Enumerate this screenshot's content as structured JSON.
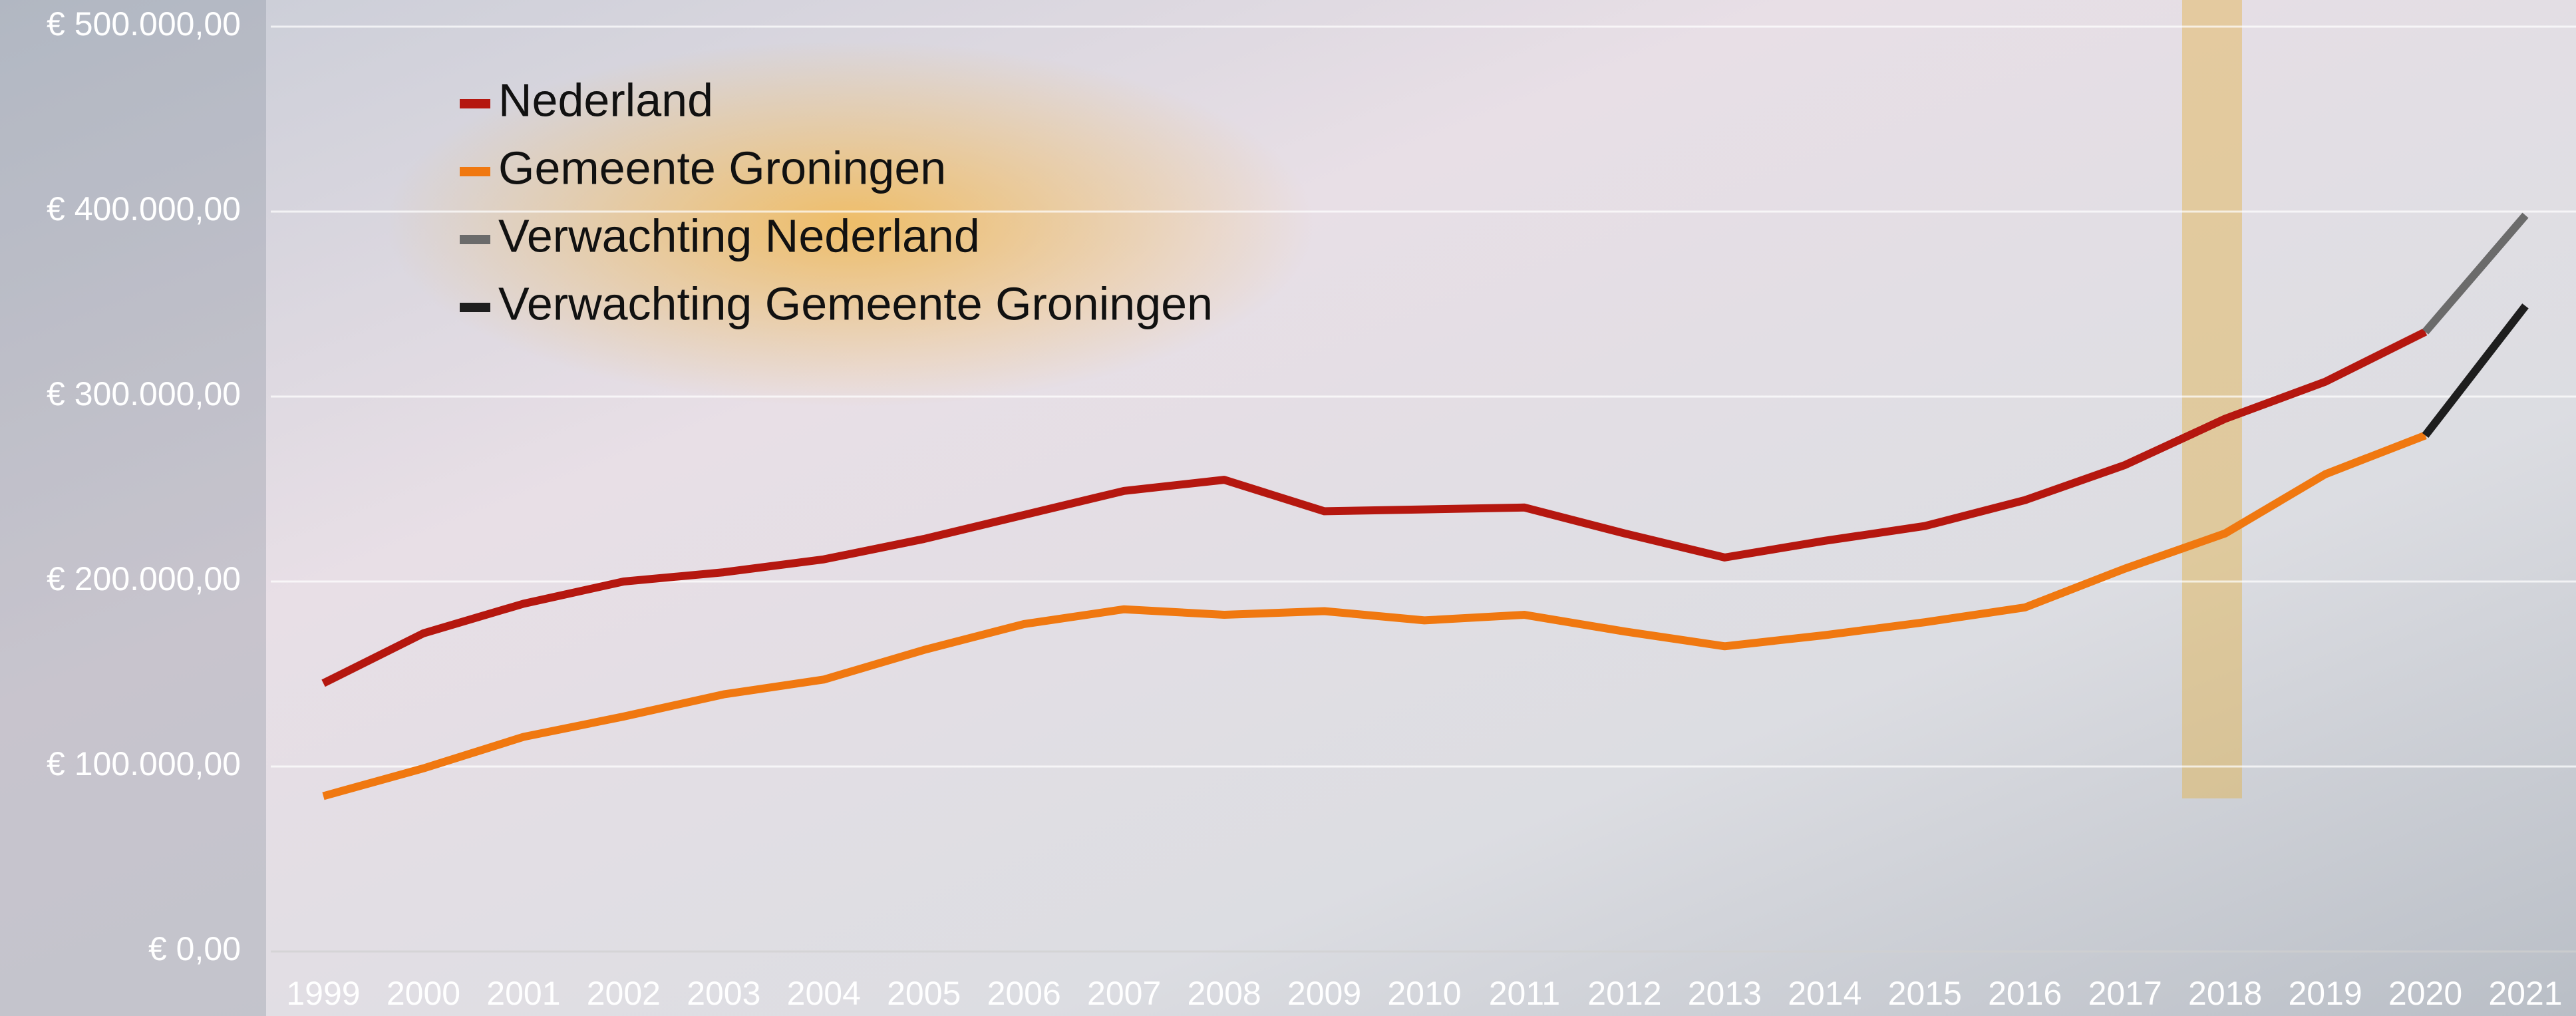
{
  "chart_data": {
    "type": "line",
    "categories": [
      "1999",
      "2000",
      "2001",
      "2002",
      "2003",
      "2004",
      "2005",
      "2006",
      "2007",
      "2008",
      "2009",
      "2010",
      "2011",
      "2012",
      "2013",
      "2014",
      "2015",
      "2016",
      "2017",
      "2018",
      "2019",
      "2020",
      "2021"
    ],
    "series": [
      {
        "name": "Nederland",
        "color": "#b5170f",
        "values": [
          145000,
          172000,
          188000,
          200000,
          205000,
          212000,
          223000,
          236000,
          249000,
          255000,
          238000,
          239000,
          240000,
          226000,
          213000,
          222000,
          230000,
          244000,
          263000,
          288000,
          308000,
          335000,
          null
        ]
      },
      {
        "name": "Gemeente Groningen",
        "color": "#f07810",
        "values": [
          84000,
          99000,
          116000,
          127000,
          139000,
          147000,
          163000,
          177000,
          185000,
          182000,
          184000,
          179000,
          182000,
          173000,
          165000,
          171000,
          178000,
          186000,
          207000,
          226000,
          258000,
          279000,
          null
        ]
      },
      {
        "name": "Verwachting Nederland",
        "color": "#6b6b6b",
        "values": [
          null,
          null,
          null,
          null,
          null,
          null,
          null,
          null,
          null,
          null,
          null,
          null,
          null,
          null,
          null,
          null,
          null,
          null,
          null,
          null,
          null,
          335000,
          398000
        ]
      },
      {
        "name": "Verwachting Gemeente Groningen",
        "color": "#1e1e1e",
        "values": [
          null,
          null,
          null,
          null,
          null,
          null,
          null,
          null,
          null,
          null,
          null,
          null,
          null,
          null,
          null,
          null,
          null,
          null,
          null,
          null,
          null,
          279000,
          349000
        ]
      }
    ],
    "ylim": [
      0,
      500000
    ],
    "yticks": [
      {
        "value": 0,
        "label": "€ 0,00"
      },
      {
        "value": 100000,
        "label": "€ 100.000,00"
      },
      {
        "value": 200000,
        "label": "€ 200.000,00"
      },
      {
        "value": 300000,
        "label": "€ 300.000,00"
      },
      {
        "value": 400000,
        "label": "€ 400.000,00"
      },
      {
        "value": 500000,
        "label": "€ 500.000,00"
      }
    ],
    "grid": true,
    "legend": "top-left"
  }
}
